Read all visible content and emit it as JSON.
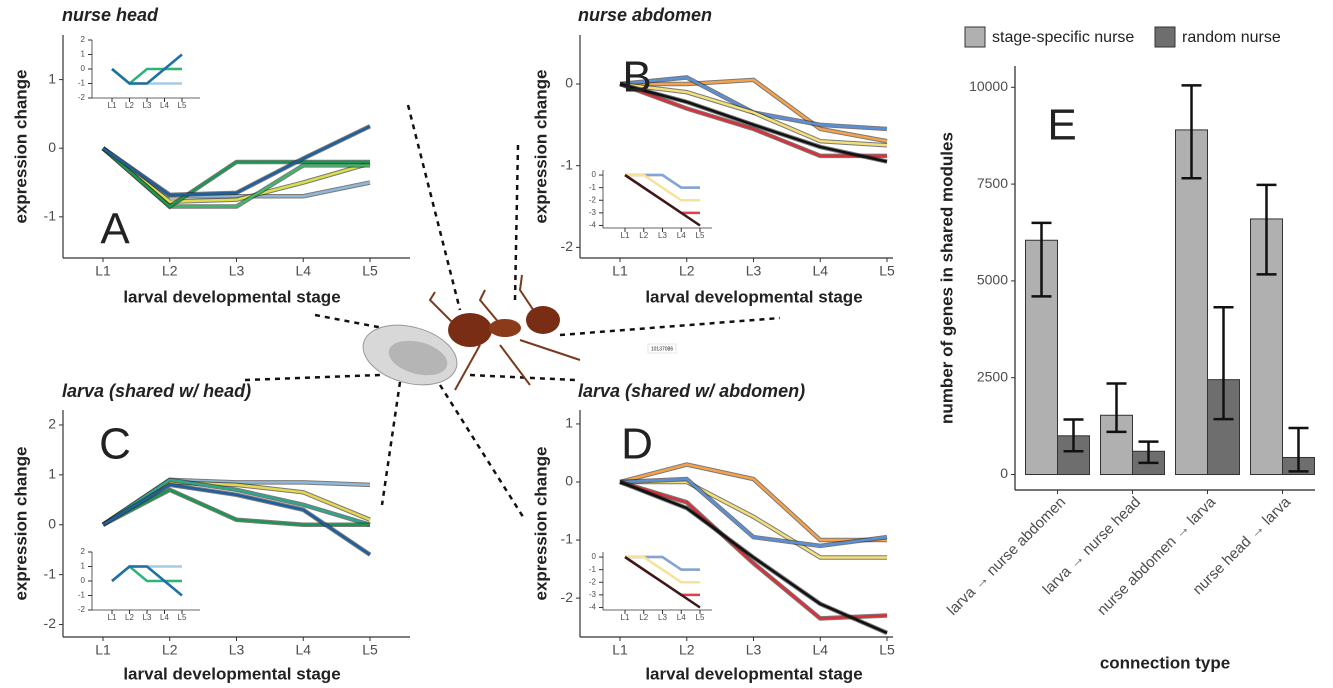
{
  "stamp": "10137086",
  "chart_data": [
    {
      "type": "line",
      "title": "nurse head",
      "annotation": "A",
      "x_label": "larval developmental stage",
      "y_label": "expression change",
      "categories": [
        "L1",
        "L2",
        "L3",
        "L4",
        "L5"
      ],
      "ylim": [
        -1.6,
        1.65
      ],
      "yticks": [
        -1,
        0,
        1
      ],
      "series": [
        {
          "color": "#8fb8d8",
          "values": [
            0,
            -0.7,
            -0.7,
            -0.7,
            -0.5
          ]
        },
        {
          "color": "#d9e04a",
          "values": [
            0,
            -0.78,
            -0.75,
            -0.5,
            -0.22
          ]
        },
        {
          "color": "#41b66e",
          "values": [
            0,
            -0.85,
            -0.85,
            -0.25,
            -0.25
          ]
        },
        {
          "color": "#1a9850",
          "values": [
            0,
            -0.85,
            -0.2,
            -0.2,
            -0.2
          ]
        },
        {
          "color": "#1f5f9e",
          "values": [
            0,
            -0.68,
            -0.65,
            -0.15,
            0.32
          ]
        }
      ]
    },
    {
      "type": "line",
      "categories": [
        "L1",
        "L2",
        "L3",
        "L4",
        "L5"
      ],
      "ylim": [
        -2,
        2
      ],
      "yticks": [
        -2,
        -1,
        0,
        1,
        2
      ],
      "series": [
        {
          "color": "#a6cce3",
          "values": [
            0,
            -1,
            -1,
            -1,
            -1
          ]
        },
        {
          "color": "#e8e84a",
          "values": [
            0,
            -1,
            -1,
            0,
            0
          ]
        },
        {
          "color": "#2fb37a",
          "values": [
            0,
            -1,
            0,
            0,
            0
          ]
        },
        {
          "color": "#1f6fa8",
          "values": [
            0,
            -1,
            -1,
            0,
            1
          ]
        }
      ]
    },
    {
      "type": "line",
      "title": "nurse abdomen",
      "annotation": "B",
      "x_label": "larval developmental stage",
      "y_label": "expression change",
      "categories": [
        "L1",
        "L2",
        "L3",
        "L4",
        "L5"
      ],
      "ylim": [
        -2.13,
        0.6
      ],
      "yticks": [
        -2,
        -1,
        0
      ],
      "series": [
        {
          "color": "#f5a24a",
          "values": [
            0,
            0.0,
            0.05,
            -0.55,
            -0.7
          ]
        },
        {
          "color": "#5b8fd6",
          "values": [
            0,
            0.08,
            -0.35,
            -0.5,
            -0.55
          ]
        },
        {
          "color": "#f3e07a",
          "values": [
            0,
            -0.1,
            -0.35,
            -0.7,
            -0.75
          ]
        },
        {
          "color": "#d9303a",
          "values": [
            0,
            -0.3,
            -0.55,
            -0.88,
            -0.88
          ]
        },
        {
          "color": "#111111",
          "values": [
            0,
            -0.22,
            -0.5,
            -0.77,
            -0.95
          ]
        }
      ]
    },
    {
      "type": "line",
      "categories": [
        "L1",
        "L2",
        "L3",
        "L4",
        "L5"
      ],
      "ylim": [
        -4.2,
        0.4
      ],
      "yticks": [
        -4,
        -3,
        -2,
        -1,
        0
      ],
      "series": [
        {
          "color": "#f5a860",
          "values": [
            0,
            0,
            0,
            -1,
            -1
          ]
        },
        {
          "color": "#7ea6dc",
          "values": [
            0,
            0,
            0,
            -1,
            -1
          ]
        },
        {
          "color": "#f6e39a",
          "values": [
            0,
            0,
            -1,
            -2,
            -2
          ]
        },
        {
          "color": "#e0404a",
          "values": [
            0,
            -1,
            -2,
            -3,
            -3
          ]
        },
        {
          "color": "#3a1a1a",
          "values": [
            0,
            -1,
            -2,
            -3,
            -4
          ]
        }
      ]
    },
    {
      "type": "line",
      "title": "larva (shared w/ head)",
      "annotation": "C",
      "x_label": "larval developmental stage",
      "y_label": "expression change",
      "categories": [
        "L1",
        "L2",
        "L3",
        "L4",
        "L5"
      ],
      "ylim": [
        -2.25,
        2.3
      ],
      "yticks": [
        -2,
        -1,
        0,
        1,
        2
      ],
      "series": [
        {
          "color": "#8fb8d8",
          "values": [
            0,
            0.9,
            0.85,
            0.85,
            0.8
          ]
        },
        {
          "color": "#e6d84a",
          "values": [
            0,
            0.85,
            0.8,
            0.65,
            0.1
          ]
        },
        {
          "color": "#2fa58a",
          "values": [
            0,
            0.9,
            0.7,
            0.4,
            0
          ]
        },
        {
          "color": "#1a9850",
          "values": [
            0,
            0.7,
            0.1,
            0,
            0
          ]
        },
        {
          "color": "#1f5f9e",
          "values": [
            0,
            0.8,
            0.6,
            0.3,
            -0.6
          ]
        }
      ]
    },
    {
      "type": "line",
      "categories": [
        "L1",
        "L2",
        "L3",
        "L4",
        "L5"
      ],
      "ylim": [
        -2,
        2
      ],
      "yticks": [
        -2,
        -1,
        0,
        1,
        2
      ],
      "series": [
        {
          "color": "#a6cce3",
          "values": [
            0,
            1,
            1,
            1,
            1
          ]
        },
        {
          "color": "#e8e84a",
          "values": [
            0,
            1,
            1,
            0,
            0
          ]
        },
        {
          "color": "#2fb37a",
          "values": [
            0,
            1,
            0,
            0,
            0
          ]
        },
        {
          "color": "#1f6fa8",
          "values": [
            0,
            1,
            1,
            0,
            -1
          ]
        }
      ]
    },
    {
      "type": "line",
      "title": "larva (shared w/ abdomen)",
      "annotation": "D",
      "x_label": "larval developmental stage",
      "y_label": "expression change",
      "categories": [
        "L1",
        "L2",
        "L3",
        "L4",
        "L5"
      ],
      "ylim": [
        -2.67,
        1.24
      ],
      "yticks": [
        -2,
        -1,
        0,
        1
      ],
      "series": [
        {
          "color": "#f5a24a",
          "values": [
            0,
            0.3,
            0.05,
            -1.0,
            -1.0
          ]
        },
        {
          "color": "#f3e07a",
          "values": [
            0,
            0.0,
            -0.6,
            -1.3,
            -1.3
          ]
        },
        {
          "color": "#5b8fd6",
          "values": [
            0,
            0.05,
            -0.95,
            -1.1,
            -0.95
          ]
        },
        {
          "color": "#d9303a",
          "values": [
            0,
            -0.35,
            -1.4,
            -2.35,
            -2.3
          ]
        },
        {
          "color": "#111111",
          "values": [
            0,
            -0.45,
            -1.3,
            -2.1,
            -2.6
          ]
        }
      ]
    },
    {
      "type": "line",
      "categories": [
        "L1",
        "L2",
        "L3",
        "L4",
        "L5"
      ],
      "ylim": [
        -4.2,
        0.4
      ],
      "yticks": [
        -4,
        -3,
        -2,
        -1,
        0
      ],
      "series": [
        {
          "color": "#f5a860",
          "values": [
            0,
            0,
            0,
            -1,
            -1
          ]
        },
        {
          "color": "#7ea6dc",
          "values": [
            0,
            0,
            0,
            -1,
            -1
          ]
        },
        {
          "color": "#f6e39a",
          "values": [
            0,
            0,
            -1,
            -2,
            -2
          ]
        },
        {
          "color": "#e0404a",
          "values": [
            0,
            -1,
            -2,
            -3,
            -3
          ]
        },
        {
          "color": "#3a1a1a",
          "values": [
            0,
            -1,
            -2,
            -3,
            -4
          ]
        }
      ]
    },
    {
      "type": "bar",
      "annotation": "E",
      "x_label": "connection type",
      "y_label": "number of genes in shared modules",
      "categories": [
        "larva → nurse abdomen",
        "larva → nurse head",
        "nurse abdomen → larva",
        "nurse head → larva"
      ],
      "ylim": [
        -400,
        10550
      ],
      "yticks": [
        0,
        2500,
        5000,
        7500,
        10000
      ],
      "series": [
        {
          "name": "stage-specific nurse",
          "color": "#b0b0b0",
          "values": [
            6050,
            1530,
            8900,
            6600
          ],
          "ci_low": [
            4600,
            1100,
            7650,
            5170
          ],
          "ci_high": [
            6500,
            2350,
            10050,
            7480
          ]
        },
        {
          "name": "random nurse",
          "color": "#6e6e6e",
          "values": [
            1000,
            600,
            2450,
            440
          ],
          "ci_low": [
            600,
            300,
            1430,
            80
          ],
          "ci_high": [
            1420,
            850,
            4320,
            1200
          ]
        }
      ]
    }
  ]
}
